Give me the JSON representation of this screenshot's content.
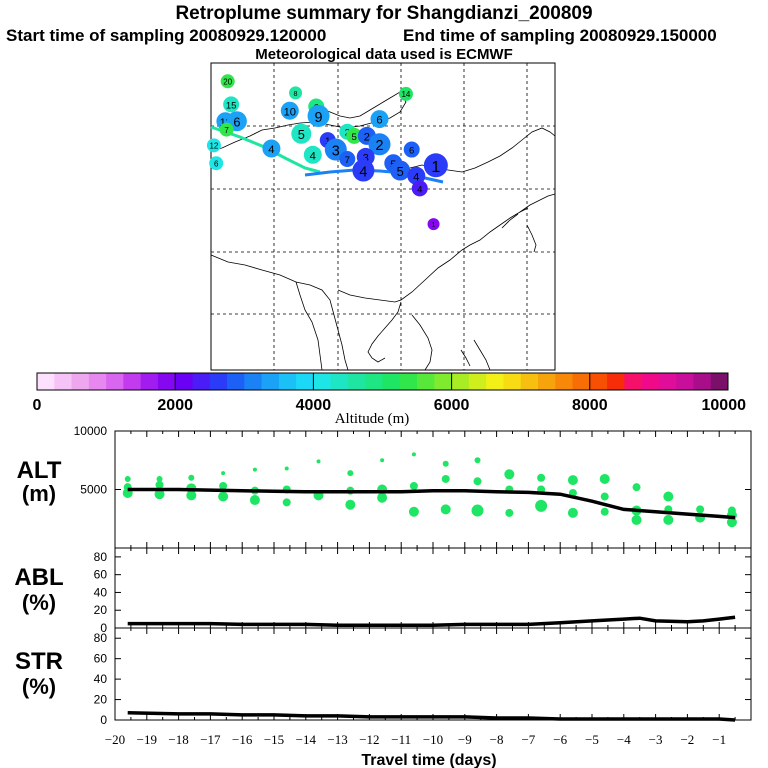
{
  "header": {
    "title": "Retroplume summary for Shangdianzi_200809",
    "start": "Start time of sampling 20080929.120000",
    "end": "End time of sampling 20080929.150000",
    "met": "Meteorological data used is ECMWF"
  },
  "colorbar": {
    "label": "Altitude (m)",
    "ticks": [
      "0",
      "2000",
      "4000",
      "6000",
      "8000",
      "10000"
    ],
    "colors": [
      "#fde0fd",
      "#f6c3f6",
      "#eea7ef",
      "#e688ef",
      "#d966ee",
      "#c23bee",
      "#a11cee",
      "#8608f0",
      "#6a00f4",
      "#4b1cf6",
      "#2a3cf7",
      "#1d60f5",
      "#1a82f5",
      "#1ba2f6",
      "#1bc0f6",
      "#1ad8f6",
      "#1ee6e6",
      "#1ee6c4",
      "#1ee6a2",
      "#1ee682",
      "#1ee664",
      "#30e64a",
      "#58e83a",
      "#80ea2e",
      "#a8ec24",
      "#d0ee1c",
      "#f3f018",
      "#f7dc14",
      "#f7c010",
      "#f7a40c",
      "#f78808",
      "#f76e06",
      "#f75004",
      "#f72c08",
      "#f7106a",
      "#f00a8a",
      "#e00c9a",
      "#c80e9a",
      "#a80e8a",
      "#7a106a"
    ]
  },
  "map": {
    "labels": [
      {
        "t": "20",
        "c": "#30e64a",
        "x": -0.2,
        "y": 9.4,
        "s": 10
      },
      {
        "t": "8",
        "c": "#1ee6a2",
        "x": 5.7,
        "y": 8.3,
        "s": 9
      },
      {
        "t": "14",
        "c": "#1ee664",
        "x": 15.3,
        "y": 8.2,
        "s": 10
      },
      {
        "t": "15",
        "c": "#1ee6c4",
        "x": 0.1,
        "y": 7.2,
        "s": 12
      },
      {
        "t": "10",
        "c": "#1ba2f6",
        "x": 5.2,
        "y": 6.6,
        "s": 14
      },
      {
        "t": "6",
        "c": "#1ee682",
        "x": 7.5,
        "y": 7.0,
        "s": 12
      },
      {
        "t": "9",
        "c": "#1ba2f6",
        "x": 7.7,
        "y": 6.1,
        "s": 18
      },
      {
        "t": "6",
        "c": "#1ba2f6",
        "x": 13.0,
        "y": 5.8,
        "s": 14
      },
      {
        "t": "11",
        "c": "#1ba2f6",
        "x": -0.4,
        "y": 5.6,
        "s": 14
      },
      {
        "t": "6",
        "c": "#1ba2f6",
        "x": 0.6,
        "y": 5.6,
        "s": 16
      },
      {
        "t": "7",
        "c": "#30e64a",
        "x": -0.3,
        "y": 4.8,
        "s": 10
      },
      {
        "t": "5",
        "c": "#1ee6c4",
        "x": 6.2,
        "y": 4.4,
        "s": 16
      },
      {
        "t": "2",
        "c": "#1ee6c4",
        "x": 10.2,
        "y": 4.6,
        "s": 12
      },
      {
        "t": "5",
        "c": "#30e64a",
        "x": 10.8,
        "y": 4.2,
        "s": 12
      },
      {
        "t": "2",
        "c": "#1d60f5",
        "x": 11.9,
        "y": 4.2,
        "s": 14
      },
      {
        "t": "2",
        "c": "#1a82f5",
        "x": 13.0,
        "y": 3.4,
        "s": 18
      },
      {
        "t": "12",
        "c": "#1ee6e6",
        "x": -1.4,
        "y": 3.3,
        "s": 10
      },
      {
        "t": "4",
        "c": "#1ba2f6",
        "x": 3.6,
        "y": 3.0,
        "s": 14
      },
      {
        "t": "1",
        "c": "#2a3cf7",
        "x": 8.5,
        "y": 3.8,
        "s": 12
      },
      {
        "t": "3",
        "c": "#1a82f5",
        "x": 9.2,
        "y": 2.9,
        "s": 18
      },
      {
        "t": "4",
        "c": "#1ee6c4",
        "x": 7.2,
        "y": 2.4,
        "s": 14
      },
      {
        "t": "7",
        "c": "#1d60f5",
        "x": 10.2,
        "y": 2.0,
        "s": 12
      },
      {
        "t": "3",
        "c": "#2a3cf7",
        "x": 11.8,
        "y": 2.2,
        "s": 14
      },
      {
        "t": "5",
        "c": "#1d60f5",
        "x": 14.2,
        "y": 1.6,
        "s": 14
      },
      {
        "t": "6",
        "c": "#1d60f5",
        "x": 15.8,
        "y": 2.9,
        "s": 12
      },
      {
        "t": "6",
        "c": "#1ee6e6",
        "x": -1.2,
        "y": 1.6,
        "s": 10
      },
      {
        "t": "4",
        "c": "#2a3cf7",
        "x": 11.6,
        "y": 0.9,
        "s": 18
      },
      {
        "t": "5",
        "c": "#1d60f5",
        "x": 14.8,
        "y": 0.9,
        "s": 16
      },
      {
        "t": "1",
        "c": "#2a3cf7",
        "x": 17.9,
        "y": 1.4,
        "s": 20
      },
      {
        "t": "4",
        "c": "#2a3cf7",
        "x": 16.2,
        "y": 0.4,
        "s": 14
      },
      {
        "t": "4",
        "c": "#4b1cf6",
        "x": 16.5,
        "y": -0.8,
        "s": 12
      },
      {
        "t": "1",
        "c": "#8608f0",
        "x": 17.7,
        "y": -4.2,
        "s": 8
      }
    ]
  },
  "chart_data": [
    {
      "type": "scatter",
      "ylabel": "ALT",
      "yunit": "(m)",
      "ylim": [
        0,
        10000
      ],
      "xlim": [
        -20,
        0
      ],
      "yticks": [
        5000,
        10000
      ],
      "mean_line": {
        "x": [
          -19.6,
          -19,
          -18,
          -17,
          -16,
          -15,
          -14,
          -13,
          -12,
          -11,
          -10,
          -9,
          -8,
          -7,
          -6,
          -5,
          -4,
          -3,
          -2,
          -1,
          -0.5
        ],
        "y": [
          5000,
          5000,
          5000,
          4950,
          4900,
          4850,
          4800,
          4800,
          4800,
          4800,
          4900,
          4900,
          4800,
          4750,
          4600,
          4000,
          3300,
          3100,
          2900,
          2700,
          2600
        ]
      },
      "points": [
        {
          "x": -19.6,
          "y": 5900,
          "r": 3
        },
        {
          "x": -19.6,
          "y": 5200,
          "r": 4
        },
        {
          "x": -19.6,
          "y": 4700,
          "r": 5
        },
        {
          "x": -18.6,
          "y": 5900,
          "r": 3
        },
        {
          "x": -18.6,
          "y": 5400,
          "r": 4
        },
        {
          "x": -18.6,
          "y": 4600,
          "r": 5
        },
        {
          "x": -17.6,
          "y": 6000,
          "r": 3
        },
        {
          "x": -17.6,
          "y": 5100,
          "r": 5
        },
        {
          "x": -17.6,
          "y": 4500,
          "r": 5
        },
        {
          "x": -16.6,
          "y": 6400,
          "r": 2
        },
        {
          "x": -16.6,
          "y": 5300,
          "r": 4
        },
        {
          "x": -16.6,
          "y": 4400,
          "r": 5
        },
        {
          "x": -15.6,
          "y": 6700,
          "r": 2
        },
        {
          "x": -15.6,
          "y": 4900,
          "r": 4
        },
        {
          "x": -15.6,
          "y": 4100,
          "r": 5
        },
        {
          "x": -14.6,
          "y": 6800,
          "r": 2
        },
        {
          "x": -14.6,
          "y": 5000,
          "r": 4
        },
        {
          "x": -14.6,
          "y": 3900,
          "r": 4
        },
        {
          "x": -13.6,
          "y": 7400,
          "r": 2
        },
        {
          "x": -13.6,
          "y": 4500,
          "r": 5
        },
        {
          "x": -12.6,
          "y": 6400,
          "r": 3
        },
        {
          "x": -12.6,
          "y": 4900,
          "r": 4
        },
        {
          "x": -12.6,
          "y": 3700,
          "r": 5
        },
        {
          "x": -11.6,
          "y": 7500,
          "r": 2
        },
        {
          "x": -11.6,
          "y": 5000,
          "r": 5
        },
        {
          "x": -11.6,
          "y": 4300,
          "r": 5
        },
        {
          "x": -10.6,
          "y": 8000,
          "r": 2
        },
        {
          "x": -10.6,
          "y": 5300,
          "r": 4
        },
        {
          "x": -10.6,
          "y": 3100,
          "r": 5
        },
        {
          "x": -9.6,
          "y": 7200,
          "r": 3
        },
        {
          "x": -9.6,
          "y": 5900,
          "r": 4
        },
        {
          "x": -9.6,
          "y": 3300,
          "r": 5
        },
        {
          "x": -8.6,
          "y": 7500,
          "r": 3
        },
        {
          "x": -8.6,
          "y": 5700,
          "r": 4
        },
        {
          "x": -8.6,
          "y": 3200,
          "r": 6
        },
        {
          "x": -7.6,
          "y": 6300,
          "r": 5
        },
        {
          "x": -7.6,
          "y": 5000,
          "r": 4
        },
        {
          "x": -7.6,
          "y": 3000,
          "r": 4
        },
        {
          "x": -6.6,
          "y": 6000,
          "r": 4
        },
        {
          "x": -6.6,
          "y": 5000,
          "r": 4
        },
        {
          "x": -6.6,
          "y": 3600,
          "r": 6
        },
        {
          "x": -5.6,
          "y": 5800,
          "r": 5
        },
        {
          "x": -5.6,
          "y": 4700,
          "r": 4
        },
        {
          "x": -5.6,
          "y": 3000,
          "r": 5
        },
        {
          "x": -4.6,
          "y": 5900,
          "r": 5
        },
        {
          "x": -4.6,
          "y": 4400,
          "r": 4
        },
        {
          "x": -4.6,
          "y": 3100,
          "r": 4
        },
        {
          "x": -3.6,
          "y": 5200,
          "r": 4
        },
        {
          "x": -3.6,
          "y": 3200,
          "r": 5
        },
        {
          "x": -3.6,
          "y": 2400,
          "r": 5
        },
        {
          "x": -2.6,
          "y": 4400,
          "r": 5
        },
        {
          "x": -2.6,
          "y": 3300,
          "r": 4
        },
        {
          "x": -2.6,
          "y": 2400,
          "r": 5
        },
        {
          "x": -1.6,
          "y": 3300,
          "r": 4
        },
        {
          "x": -1.6,
          "y": 2600,
          "r": 5
        },
        {
          "x": -0.6,
          "y": 3200,
          "r": 4
        },
        {
          "x": -0.6,
          "y": 2800,
          "r": 5
        },
        {
          "x": -0.6,
          "y": 2200,
          "r": 5
        }
      ]
    },
    {
      "type": "line",
      "ylabel": "ABL",
      "yunit": "(%)",
      "ylim": [
        0,
        90
      ],
      "yticks": [
        0,
        20,
        40,
        60,
        80
      ],
      "x": [
        -19.6,
        -18,
        -17,
        -16,
        -15,
        -14,
        -13,
        -12,
        -11,
        -10,
        -9,
        -8,
        -7,
        -6,
        -5,
        -4,
        -3.5,
        -3,
        -2,
        -1.5,
        -1,
        -0.5
      ],
      "y": [
        5,
        5,
        5,
        4,
        4,
        4,
        3,
        3,
        3,
        3,
        4,
        4,
        4,
        6,
        8,
        10,
        11,
        8,
        7,
        8,
        10,
        12
      ]
    },
    {
      "type": "line",
      "ylabel": "STR",
      "yunit": "(%)",
      "ylim": [
        0,
        90
      ],
      "yticks": [
        0,
        20,
        40,
        60,
        80
      ],
      "x": [
        -19.6,
        -18,
        -17,
        -16,
        -15,
        -14,
        -13,
        -12,
        -11,
        -10,
        -9,
        -8,
        -7,
        -6,
        -5,
        -4,
        -3,
        -2,
        -1,
        -0.5
      ],
      "y": [
        7,
        6,
        6,
        5,
        5,
        4,
        4,
        3,
        3,
        3,
        3,
        2,
        2,
        1,
        1,
        1,
        1,
        1,
        1,
        0
      ],
      "xticks": [
        -20,
        -19,
        -18,
        -17,
        -16,
        -15,
        -14,
        -13,
        -12,
        -11,
        -10,
        -9,
        -8,
        -7,
        -6,
        -5,
        -4,
        -3,
        -2,
        -1
      ],
      "xlabel": "Travel time (days)"
    }
  ]
}
